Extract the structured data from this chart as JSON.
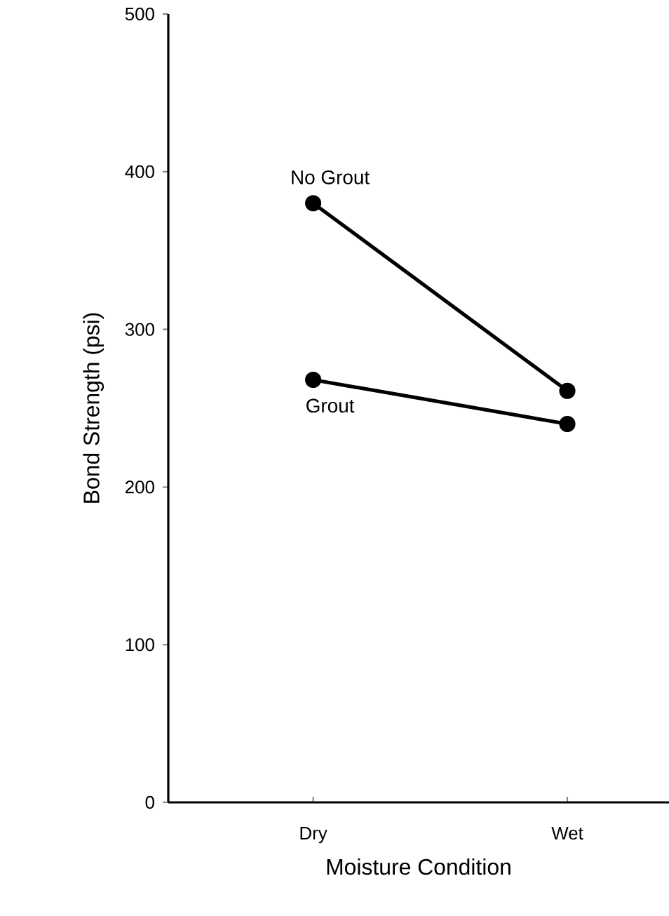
{
  "chart_data": {
    "type": "line",
    "xlabel": "Moisture Condition",
    "ylabel": "Bond Strength (psi)",
    "categories": [
      "Dry",
      "Wet"
    ],
    "series": [
      {
        "name": "No Grout",
        "color": "#000000",
        "values": [
          380,
          261
        ]
      },
      {
        "name": "Grout",
        "color": "#000000",
        "values": [
          268,
          240
        ]
      }
    ],
    "ylim": [
      0,
      500
    ],
    "yticks": [
      0,
      100,
      200,
      300,
      400,
      500
    ],
    "grid": false,
    "legend": false,
    "marker": "circle",
    "line_style": "solid"
  }
}
